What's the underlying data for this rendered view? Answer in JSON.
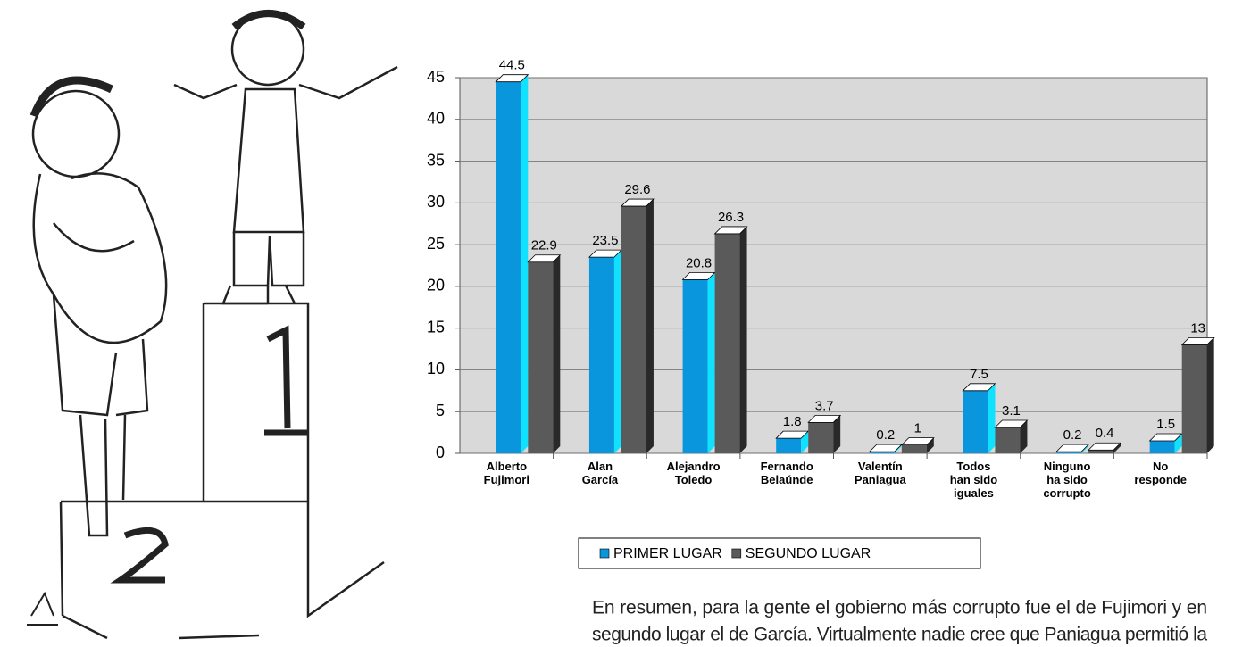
{
  "chart_data": {
    "type": "bar3d",
    "categories": [
      "Alberto\nFujimori",
      "Alan\nGarcía",
      "Alejandro\nToledo",
      "Fernando\nBelaúnde",
      "Valentín\nPaniagua",
      "Todos\nhan sido\niguales",
      "Ninguno\nha sido\ncorrupto",
      "No\nresponde"
    ],
    "series": [
      {
        "name": "PRIMER LUGAR",
        "color": "#0a96dc",
        "values": [
          44.5,
          23.5,
          20.8,
          1.8,
          0.2,
          7.5,
          0.2,
          1.5
        ]
      },
      {
        "name": "SEGUNDO LUGAR",
        "color": "#5a5a5a",
        "values": [
          22.9,
          29.6,
          26.3,
          3.7,
          1,
          3.1,
          0.4,
          13
        ]
      }
    ],
    "ylim": [
      0,
      45
    ],
    "yticks": [
      0,
      5,
      10,
      15,
      20,
      25,
      30,
      35,
      40,
      45
    ],
    "grid": true,
    "legend": "bottom"
  },
  "paragraph": [
    "En resumen, para la gente el gobierno más corrupto fue el de Fujimori y en",
    "segundo lugar el de García. Virtualmente nadie cree que Paniagua permitió la"
  ]
}
